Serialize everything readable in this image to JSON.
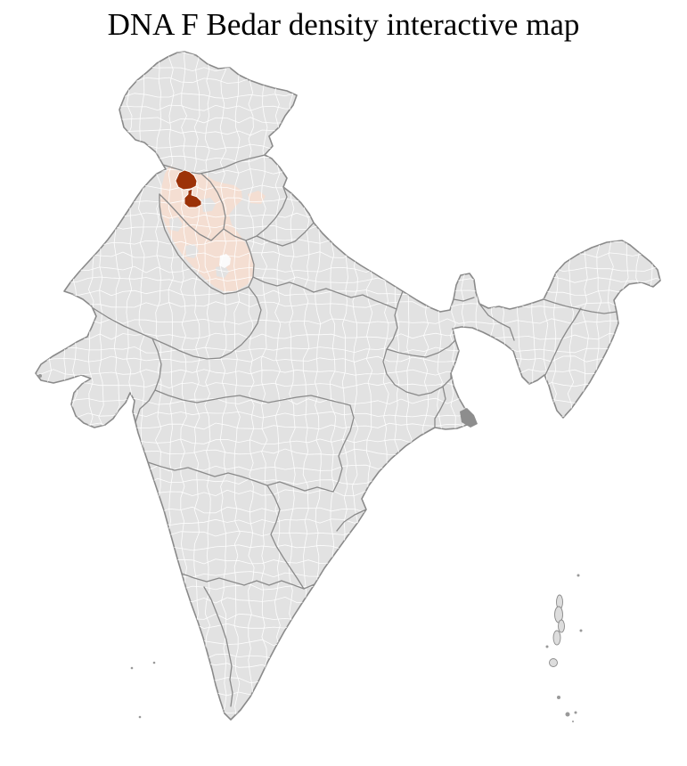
{
  "header": {
    "title": "DNA F Bedar density interactive map"
  },
  "map": {
    "label": "India district-level choropleth map",
    "colors": {
      "district_default": "#e2e2e2",
      "district_border": "#ffffff",
      "state_border": "#8a8a8a",
      "highlight_low_density": "#f4ded2",
      "highlight_high_density": "#9c3208",
      "river_delta_patch": "#8d8d8d",
      "island_fill": "#dddddd",
      "background": "#ffffff"
    },
    "highlighted": {
      "low_density_cluster": "northwest districts cluster shaded light peach",
      "high_density_districts_count": 2,
      "high_density_color": "#9c3208"
    }
  }
}
